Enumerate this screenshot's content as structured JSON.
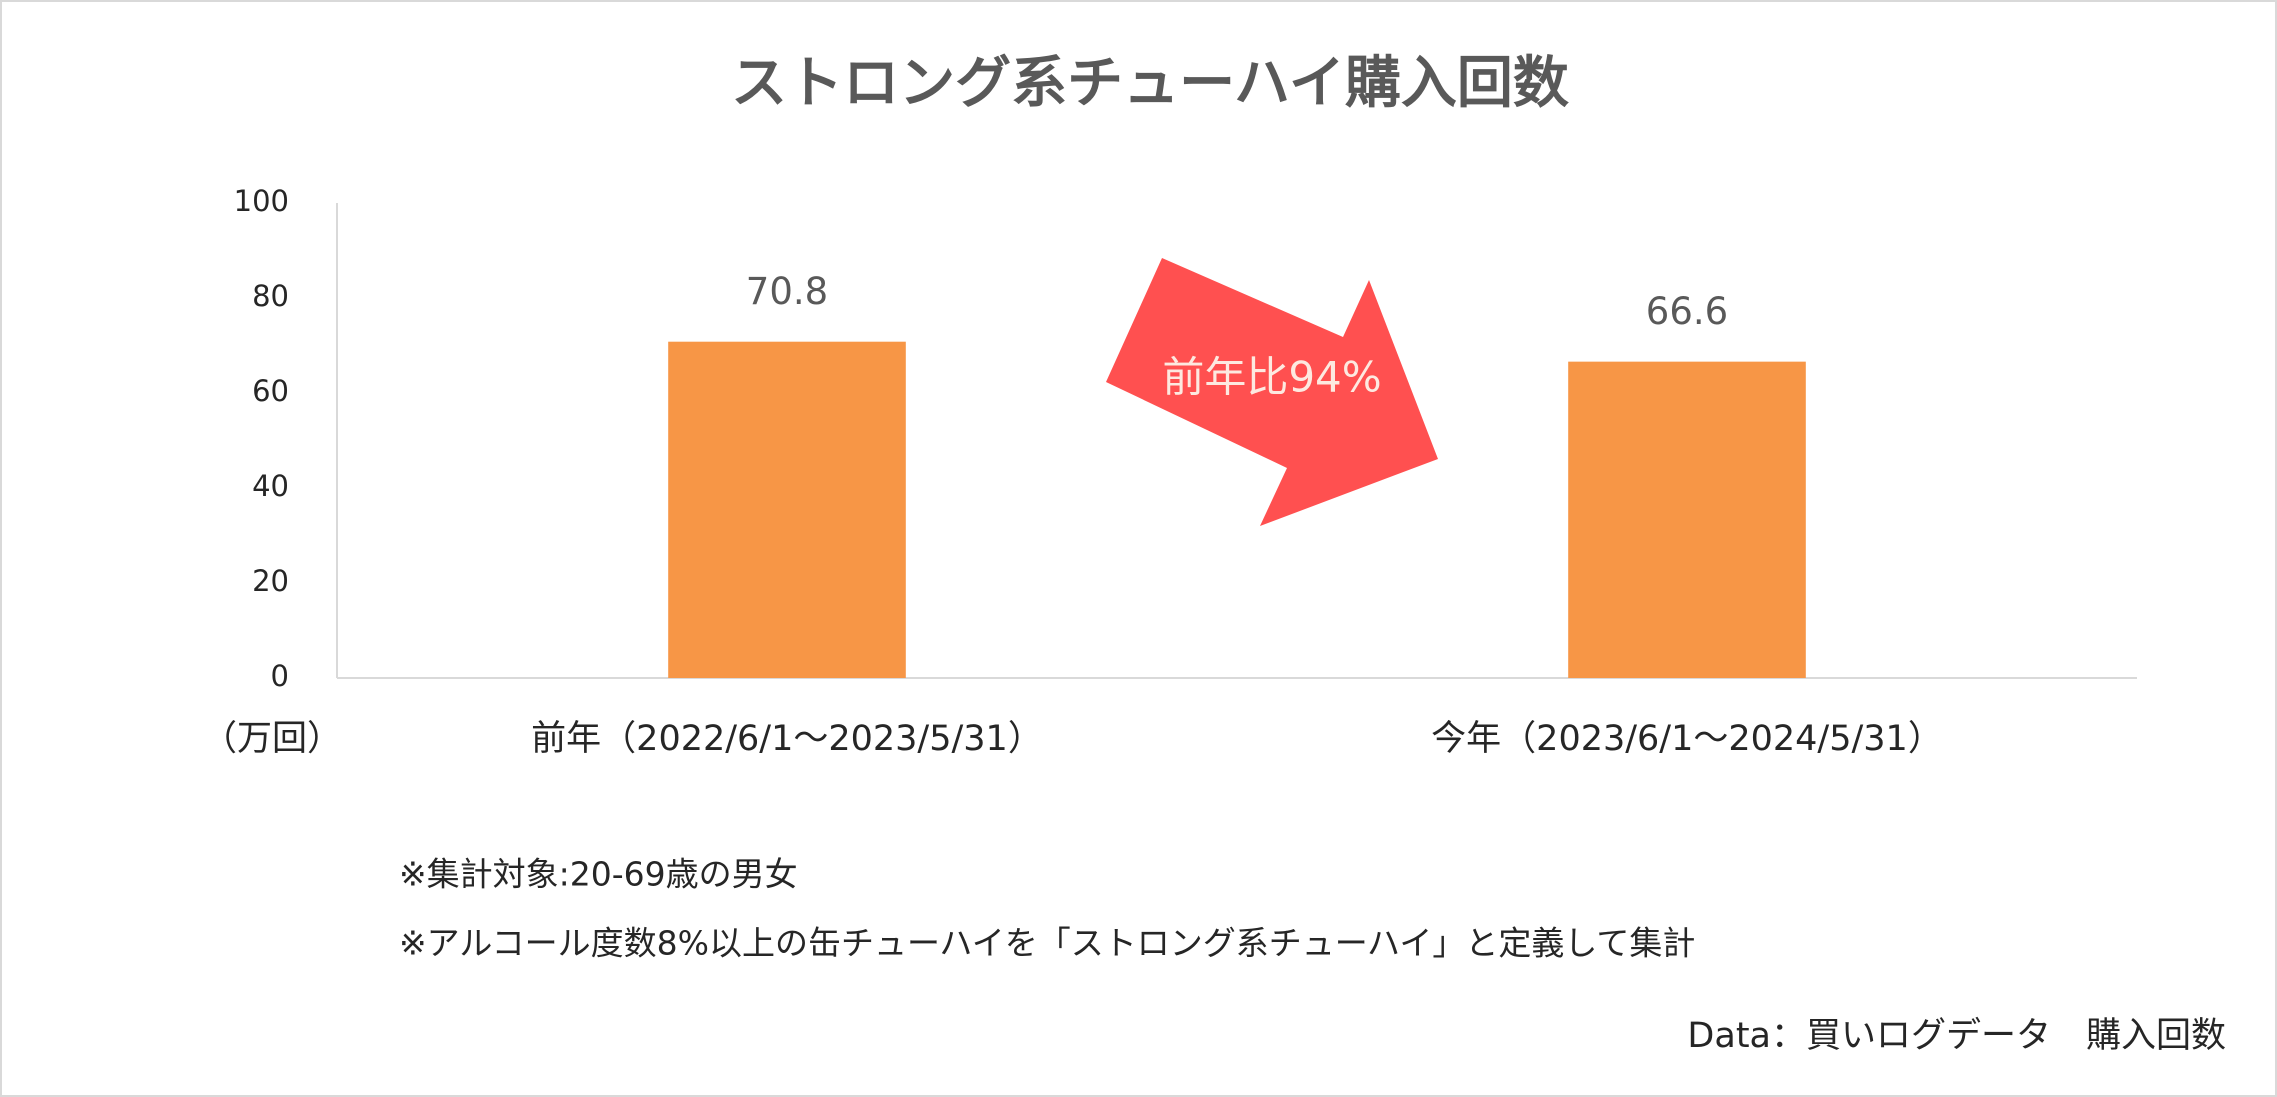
{
  "chart_data": {
    "type": "bar",
    "title": "ストロング系チューハイ購入回数",
    "unit_label": "（万回）",
    "categories": [
      "前年（2022/6/1～2023/5/31）",
      "今年（2023/6/1～2024/5/31）"
    ],
    "values": [
      70.8,
      66.6
    ],
    "color": "#f79646",
    "ylim": [
      0,
      100
    ],
    "yticks": [
      0,
      20,
      40,
      60,
      80,
      100
    ],
    "grid": false,
    "annotation": "前年比94%",
    "annotation_color": "#ff5050",
    "notes": [
      "※集計対象:20-69歳の男女",
      "※アルコール度数8%以上の缶チューハイを「ストロング系チューハイ」と定義して集計"
    ],
    "source": "Data：買いログデータ　購入回数"
  }
}
